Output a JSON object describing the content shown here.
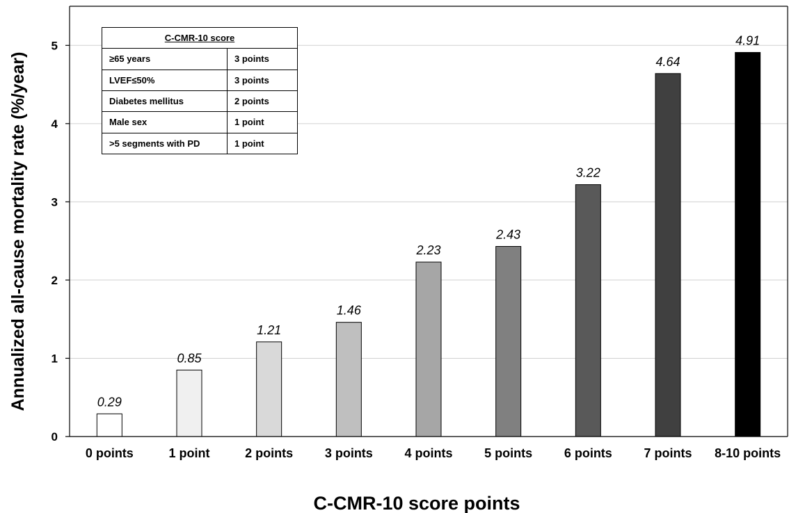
{
  "chart_data": {
    "type": "bar",
    "title": "",
    "xlabel": "C-CMR-10 score points",
    "ylabel": "Annualized all-cause mortality rate (%/year)",
    "categories": [
      "0 points",
      "1 point",
      "2 points",
      "3 points",
      "4 points",
      "5 points",
      "6 points",
      "7 points",
      "8-10 points"
    ],
    "values": [
      0.29,
      0.85,
      1.21,
      1.46,
      2.23,
      2.43,
      3.22,
      4.64,
      4.91
    ],
    "data_labels": [
      "0.29",
      "0.85",
      "1.21",
      "1.46",
      "2.23",
      "2.43",
      "3.22",
      "4.64",
      "4.91"
    ],
    "bar_colors": [
      "#ffffff",
      "#f0f0f0",
      "#d9d9d9",
      "#bfbfbf",
      "#a6a6a6",
      "#808080",
      "#595959",
      "#404040",
      "#000000"
    ],
    "ylim": [
      0,
      5.5
    ],
    "yticks": [
      0,
      1,
      2,
      3,
      4,
      5
    ],
    "grid": true,
    "legend": "none"
  },
  "table": {
    "header": "C-CMR-10 score",
    "rows": [
      {
        "criterion": "≥65 years",
        "points": "3 points"
      },
      {
        "criterion": "LVEF≤50%",
        "points": "3 points"
      },
      {
        "criterion": "Diabetes mellitus",
        "points": "2 points"
      },
      {
        "criterion": "Male sex",
        "points": "1 point"
      },
      {
        "criterion": ">5 segments with PD",
        "points": "1 point"
      }
    ]
  }
}
